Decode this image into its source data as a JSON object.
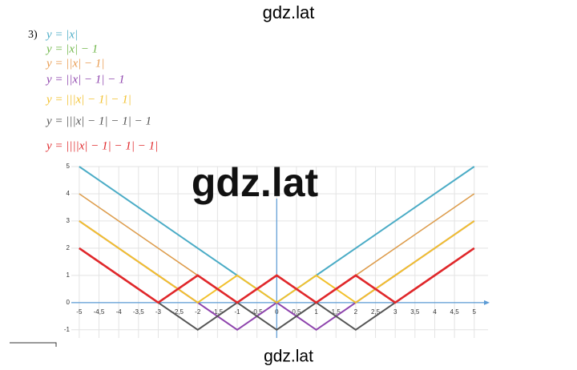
{
  "header": {
    "watermark": "gdz.lat"
  },
  "exercise": {
    "number": "3)"
  },
  "center_watermark": "gdz.lat",
  "footer": {
    "watermark": "gdz.lat"
  },
  "chart_data": {
    "type": "line",
    "x": [
      -5,
      -4,
      -3,
      -2,
      -1,
      0,
      1,
      2,
      3,
      4,
      5
    ],
    "series": [
      {
        "name": "y = |x|",
        "color": "#4bacc6",
        "values": [
          5,
          4,
          3,
          2,
          1,
          0,
          1,
          2,
          3,
          4,
          5
        ]
      },
      {
        "name": "y = |x| − 1",
        "color": "#70b74a",
        "values": [
          4,
          3,
          2,
          1,
          0,
          -1,
          0,
          1,
          2,
          3,
          4
        ]
      },
      {
        "name": "y = ||x| − 1|",
        "color": "#e89a4e",
        "values": [
          4,
          3,
          2,
          1,
          0,
          1,
          0,
          1,
          2,
          3,
          4
        ]
      },
      {
        "name": "y = ||x| − 1| − 1",
        "color": "#8e44ad",
        "values": [
          3,
          2,
          1,
          0,
          -1,
          0,
          -1,
          0,
          1,
          2,
          3
        ]
      },
      {
        "name": "y = |||x| − 1| − 1|",
        "color": "#f2c12e",
        "values": [
          3,
          2,
          1,
          0,
          1,
          0,
          1,
          0,
          1,
          2,
          3
        ]
      },
      {
        "name": "y = |||x| − 1| − 1| − 1",
        "color": "#555555",
        "values": [
          2,
          1,
          0,
          -1,
          0,
          -1,
          0,
          -1,
          0,
          1,
          2
        ]
      },
      {
        "name": "y = ||||x| − 1| − 1| − 1|",
        "color": "#e0282b",
        "values": [
          2,
          1,
          0,
          1,
          0,
          1,
          0,
          1,
          0,
          1,
          2
        ]
      }
    ],
    "xlim": [
      -5.2,
      5.35
    ],
    "ylim": [
      -1.3,
      5
    ],
    "xticks": [
      -5,
      {
        "value": -4.5,
        "label": "-4,5"
      },
      -4,
      {
        "value": -3.5,
        "label": "-3,5"
      },
      -3,
      {
        "value": -2.5,
        "label": "-2,5"
      },
      -2,
      {
        "value": -1.5,
        "label": "-1,5"
      },
      -1,
      {
        "value": -0.5,
        "label": "-0,5"
      },
      0,
      {
        "value": 0.5,
        "label": "0,5"
      },
      1,
      {
        "value": 1.5,
        "label": "1,5"
      },
      2,
      {
        "value": 2.5,
        "label": "2,5"
      },
      3,
      {
        "value": 3.5,
        "label": "3,5"
      },
      4,
      {
        "value": 4.5,
        "label": "4,5"
      },
      5
    ],
    "yticks": [
      -1,
      0,
      1,
      2,
      3,
      4,
      5
    ],
    "grid": true
  }
}
